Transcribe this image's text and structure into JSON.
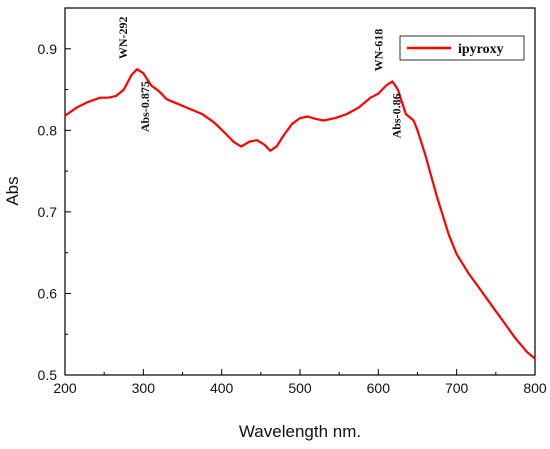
{
  "chart_data": {
    "type": "line",
    "xlabel": "Wavelength nm.",
    "ylabel": "Abs",
    "xlim": [
      200,
      800
    ],
    "ylim": [
      0.5,
      0.95
    ],
    "x_ticks": [
      200,
      300,
      400,
      500,
      600,
      700,
      800
    ],
    "y_ticks": [
      0.5,
      0.6,
      0.7,
      0.8,
      0.9
    ],
    "x_tick_labels": [
      "200",
      "300",
      "400",
      "500",
      "600",
      "700",
      "800"
    ],
    "y_tick_labels": [
      "0.5",
      "0.6",
      "0.7",
      "0.8",
      "0.9"
    ],
    "legend_position": "top-right",
    "grid": false,
    "series": [
      {
        "name": "ipyroxy",
        "color": "#ff0000",
        "x": [
          200,
          215,
          230,
          245,
          255,
          265,
          275,
          285,
          292,
          300,
          310,
          320,
          330,
          345,
          360,
          375,
          390,
          405,
          415,
          425,
          435,
          445,
          455,
          462,
          470,
          480,
          490,
          500,
          510,
          520,
          530,
          545,
          560,
          575,
          590,
          600,
          610,
          618,
          625,
          635,
          645,
          650,
          660,
          675,
          690,
          700,
          715,
          730,
          745,
          760,
          775,
          790,
          800
        ],
        "y": [
          0.818,
          0.828,
          0.835,
          0.84,
          0.84,
          0.842,
          0.85,
          0.868,
          0.875,
          0.87,
          0.855,
          0.848,
          0.838,
          0.832,
          0.826,
          0.82,
          0.81,
          0.796,
          0.786,
          0.78,
          0.786,
          0.788,
          0.782,
          0.775,
          0.78,
          0.795,
          0.808,
          0.815,
          0.817,
          0.814,
          0.812,
          0.815,
          0.82,
          0.828,
          0.84,
          0.845,
          0.855,
          0.86,
          0.85,
          0.82,
          0.812,
          0.8,
          0.77,
          0.718,
          0.672,
          0.648,
          0.625,
          0.605,
          0.585,
          0.565,
          0.545,
          0.528,
          0.52
        ]
      }
    ],
    "annotations": [
      {
        "text": "WN-292",
        "x": 292,
        "y": 0.875
      },
      {
        "text": "Abs-0.875",
        "x": 292,
        "y": 0.875
      },
      {
        "text": "WN-618",
        "x": 618,
        "y": 0.86
      },
      {
        "text": "Abs-0.86",
        "x": 618,
        "y": 0.86
      }
    ]
  }
}
